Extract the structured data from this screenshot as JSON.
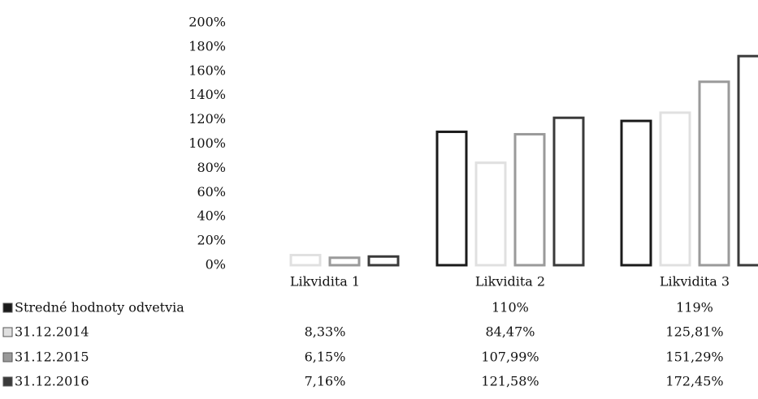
{
  "chart_data": {
    "type": "bar",
    "categories": [
      "Likvidita 1",
      "Likvidita 2",
      "Likvidita 3"
    ],
    "series": [
      {
        "name": "Stredné hodnoty odvetvia",
        "color": "#1a1a1a",
        "values": [
          null,
          110,
          119
        ],
        "value_labels": [
          null,
          "110%",
          "119%"
        ]
      },
      {
        "name": "31.12.2014",
        "color": "#e0e0e0",
        "values": [
          8.33,
          84.47,
          125.81
        ],
        "value_labels": [
          "8,33%",
          "84,47%",
          "125,81%"
        ]
      },
      {
        "name": "31.12.2015",
        "color": "#9a9a9a",
        "values": [
          6.15,
          107.99,
          151.29
        ],
        "value_labels": [
          "6,15%",
          "107,99%",
          "151,29%"
        ]
      },
      {
        "name": "31.12.2016",
        "color": "#3a3a3a",
        "values": [
          7.16,
          121.58,
          172.45
        ],
        "value_labels": [
          "7,16%",
          "121,58%",
          "172,45%"
        ]
      }
    ],
    "ylim": [
      0,
      200
    ],
    "yticks": [
      {
        "value": 0,
        "label": "0%"
      },
      {
        "value": 20,
        "label": "20%"
      },
      {
        "value": 40,
        "label": "40%"
      },
      {
        "value": 60,
        "label": "60%"
      },
      {
        "value": 80,
        "label": "80%"
      },
      {
        "value": 100,
        "label": "100%"
      },
      {
        "value": 120,
        "label": "120%"
      },
      {
        "value": 140,
        "label": "140%"
      },
      {
        "value": 160,
        "label": "160%"
      },
      {
        "value": 180,
        "label": "180%"
      },
      {
        "value": 200,
        "label": "200%"
      }
    ],
    "grid": false
  }
}
